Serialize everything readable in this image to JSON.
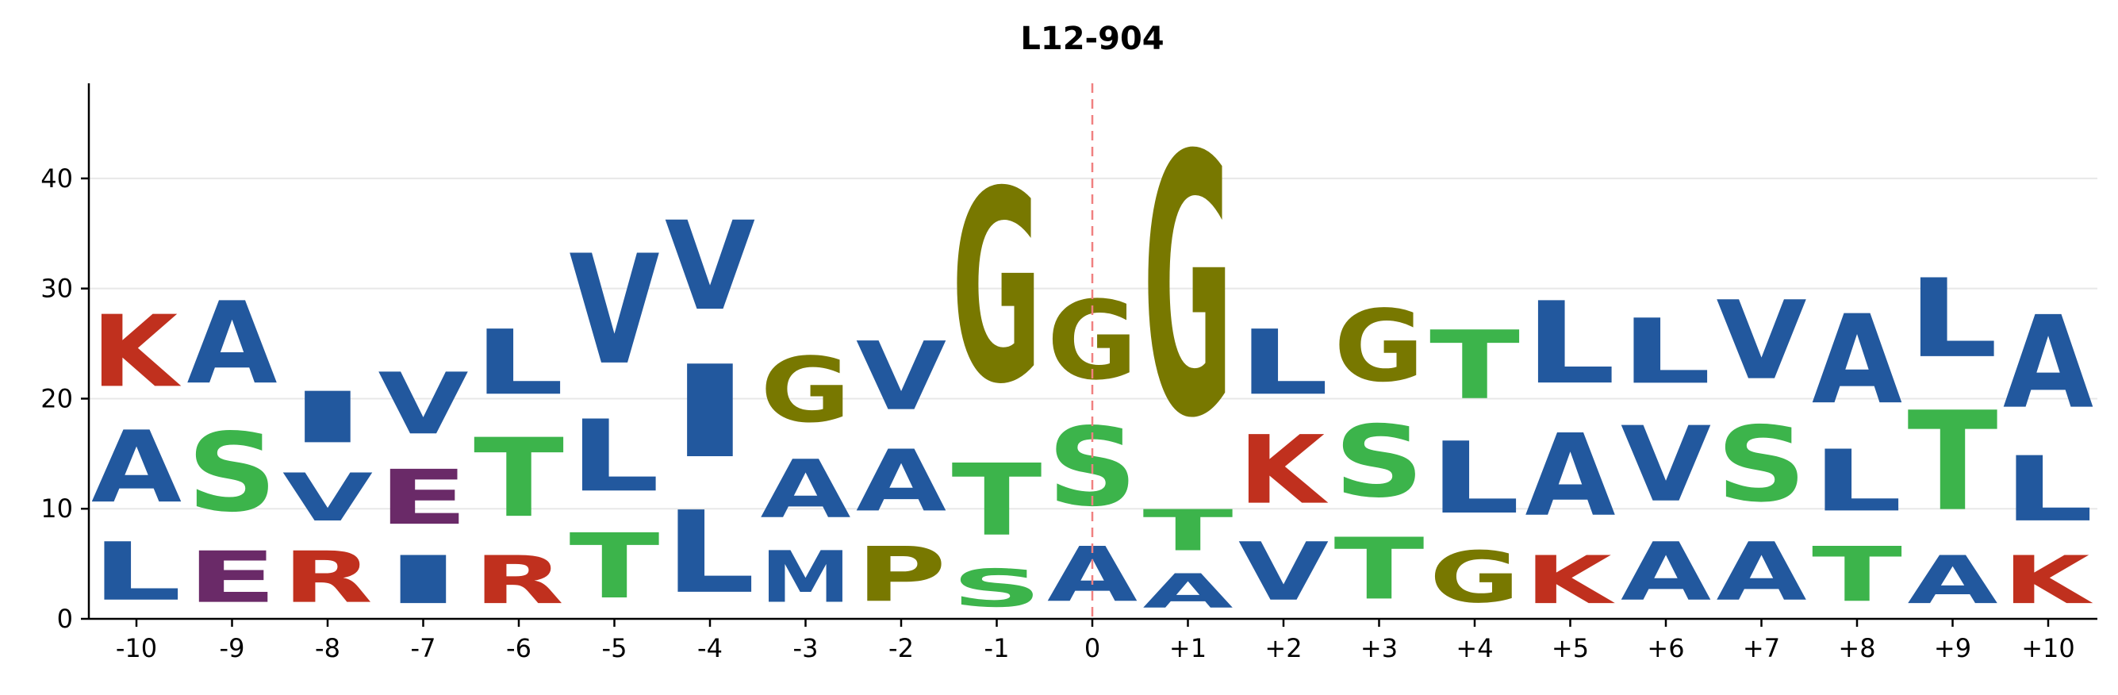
{
  "chart_data": {
    "type": "sequence-logo",
    "title": "L12-904",
    "xlabel": "",
    "ylabel": "",
    "ylim": [
      0,
      49
    ],
    "yticks": [
      0,
      10,
      20,
      30,
      40
    ],
    "grid": "horizontal",
    "center_marker": "0",
    "colors": {
      "hydrophobic": "#22589e",
      "polar": "#3cb44b",
      "glycine_proline": "#787800",
      "basic": "#c0301e",
      "acidic": "#6a2a68"
    },
    "positions": [
      {
        "label": "-10",
        "stack": [
          [
            "L",
            8.5
          ],
          [
            "A",
            10.5
          ],
          [
            "K",
            10.5
          ]
        ]
      },
      {
        "label": "-9",
        "stack": [
          [
            "E",
            7.5
          ],
          [
            "S",
            11.5
          ],
          [
            "A",
            12.0
          ]
        ]
      },
      {
        "label": "-8",
        "stack": [
          [
            "R",
            7.5
          ],
          [
            "V",
            7.0
          ],
          [
            "I",
            7.5
          ]
        ]
      },
      {
        "label": "-7",
        "stack": [
          [
            "I",
            7.0
          ],
          [
            "E",
            8.0
          ],
          [
            "V",
            9.0
          ]
        ]
      },
      {
        "label": "-6",
        "stack": [
          [
            "R",
            7.0
          ],
          [
            "T",
            11.5
          ],
          [
            "L",
            9.5
          ]
        ]
      },
      {
        "label": "-5",
        "stack": [
          [
            "T",
            9.5
          ],
          [
            "L",
            10.5
          ],
          [
            "V",
            16.0
          ]
        ]
      },
      {
        "label": "-4",
        "stack": [
          [
            "L",
            12.0
          ],
          [
            "I",
            13.5
          ],
          [
            "V",
            13.0
          ]
        ]
      },
      {
        "label": "-3",
        "stack": [
          [
            "M",
            7.5
          ],
          [
            "A",
            8.5
          ],
          [
            "G",
            9.5
          ]
        ]
      },
      {
        "label": "-2",
        "stack": [
          [
            "P",
            8.0
          ],
          [
            "A",
            9.0
          ],
          [
            "V",
            10.0
          ]
        ]
      },
      {
        "label": "-1",
        "stack": [
          [
            "S",
            5.5
          ],
          [
            "T",
            10.5
          ],
          [
            "G",
            28.0
          ]
        ]
      },
      {
        "label": "0",
        "stack": [
          [
            "A",
            8.0
          ],
          [
            "S",
            11.5
          ],
          [
            "G",
            11.5
          ]
        ]
      },
      {
        "label": "+1",
        "stack": [
          [
            "A",
            5.0
          ],
          [
            "T",
            6.0
          ],
          [
            "G",
            38.0
          ]
        ]
      },
      {
        "label": "+2",
        "stack": [
          [
            "V",
            8.5
          ],
          [
            "K",
            10.0
          ],
          [
            "L",
            9.5
          ]
        ]
      },
      {
        "label": "+3",
        "stack": [
          [
            "T",
            9.0
          ],
          [
            "S",
            10.5
          ],
          [
            "G",
            10.5
          ]
        ]
      },
      {
        "label": "+4",
        "stack": [
          [
            "G",
            7.5
          ],
          [
            "L",
            10.5
          ],
          [
            "T",
            10.0
          ]
        ]
      },
      {
        "label": "+5",
        "stack": [
          [
            "K",
            7.0
          ],
          [
            "A",
            12.0
          ],
          [
            "L",
            12.0
          ]
        ]
      },
      {
        "label": "+6",
        "stack": [
          [
            "A",
            8.5
          ],
          [
            "V",
            11.0
          ],
          [
            "L",
            9.5
          ]
        ]
      },
      {
        "label": "+7",
        "stack": [
          [
            "A",
            8.5
          ],
          [
            "S",
            11.0
          ],
          [
            "V",
            11.5
          ]
        ]
      },
      {
        "label": "+8",
        "stack": [
          [
            "T",
            8.0
          ],
          [
            "L",
            9.0
          ],
          [
            "A",
            13.0
          ]
        ]
      },
      {
        "label": "+9",
        "stack": [
          [
            "A",
            7.0
          ],
          [
            "T",
            14.5
          ],
          [
            "L",
            11.5
          ]
        ]
      },
      {
        "label": "+10",
        "stack": [
          [
            "K",
            7.0
          ],
          [
            "L",
            9.5
          ],
          [
            "A",
            13.5
          ]
        ]
      }
    ]
  }
}
